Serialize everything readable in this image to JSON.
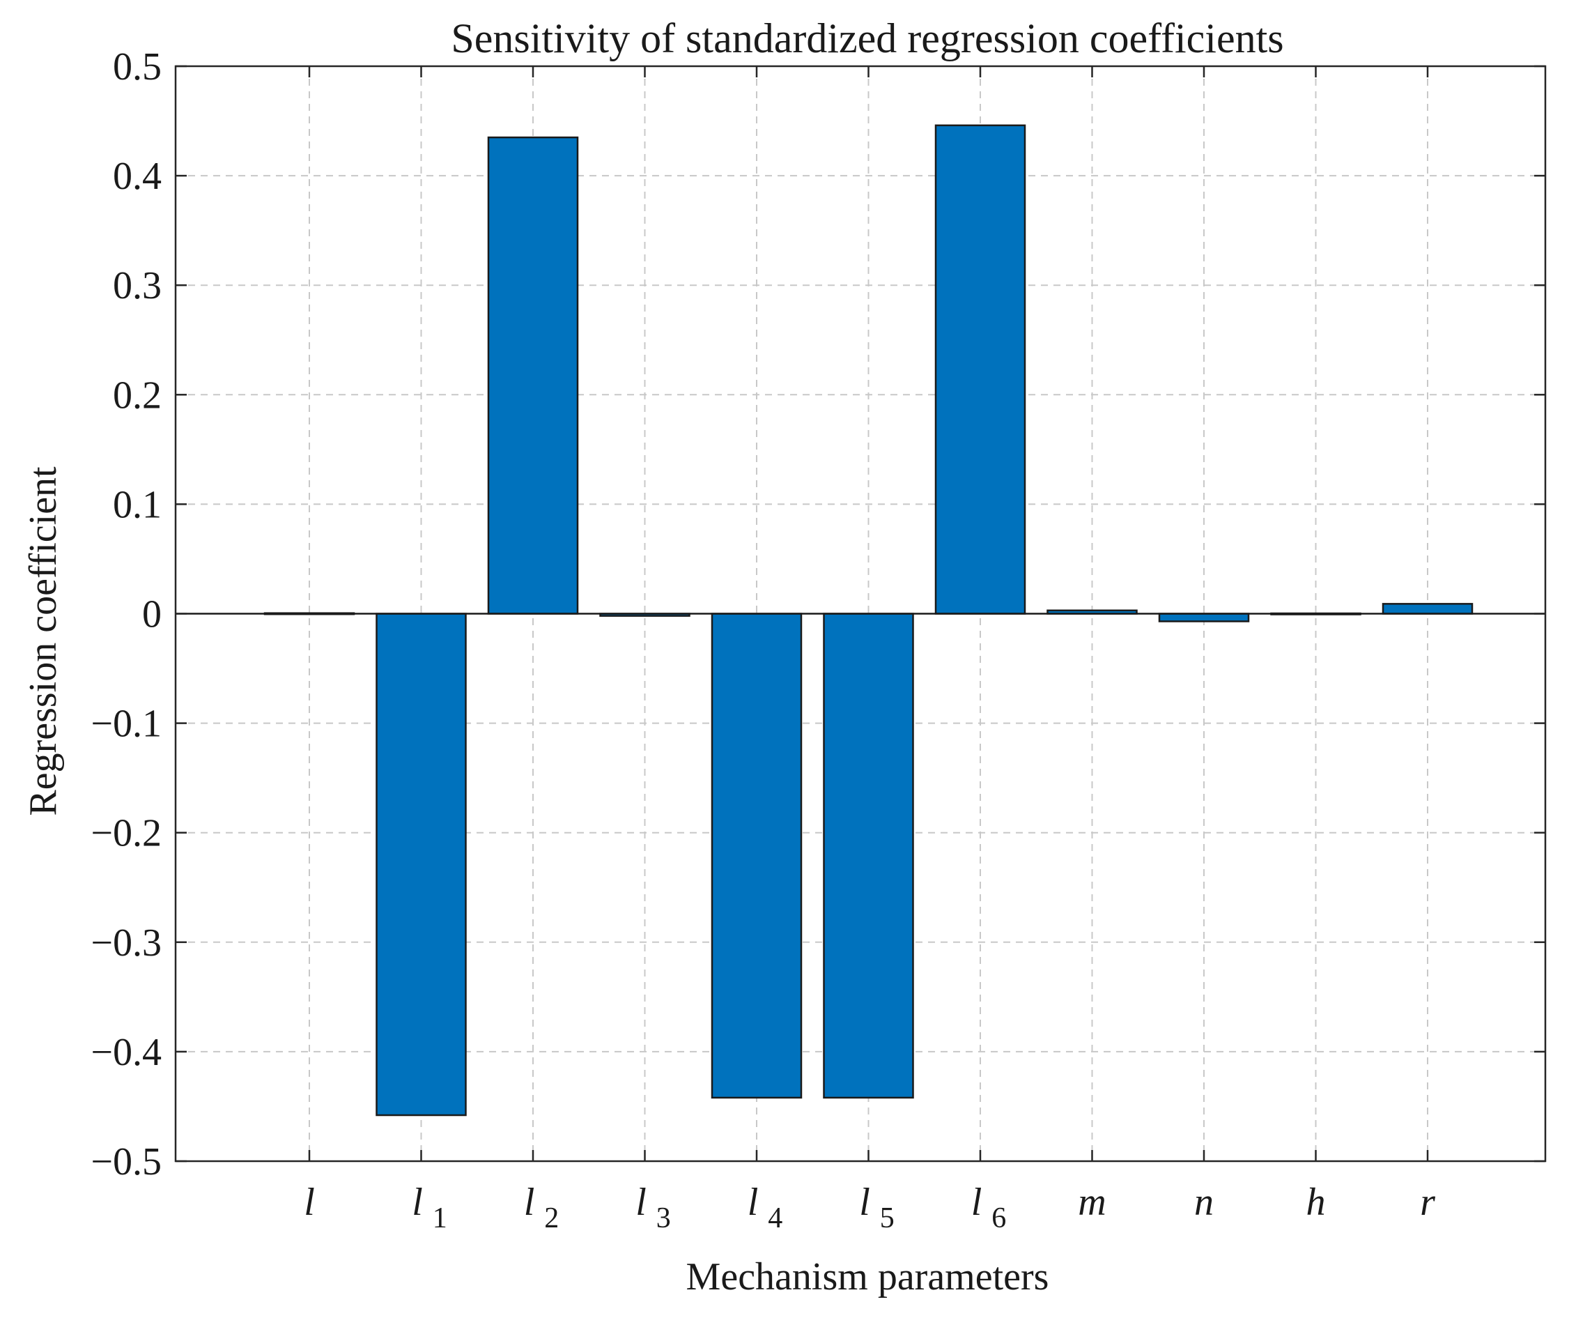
{
  "chart_data": {
    "type": "bar",
    "title": "Sensitivity of standardized regression coefficients",
    "xlabel": "Mechanism parameters",
    "ylabel": "Regression coefficient",
    "ylim": [
      -0.5,
      0.5
    ],
    "yticks": [
      0.5,
      0.4,
      0.3,
      0.2,
      0.1,
      0,
      -0.1,
      -0.2,
      -0.3,
      -0.4,
      -0.5
    ],
    "ytick_labels": [
      "0.5",
      "0.4",
      "0.3",
      "0.2",
      "0.1",
      "0",
      "−0.1",
      "−0.2",
      "−0.3",
      "−0.4",
      "−0.5"
    ],
    "grid": true,
    "bar_color": "#0072BD",
    "categories": [
      {
        "base": "l",
        "sub": ""
      },
      {
        "base": "l",
        "sub": "1"
      },
      {
        "base": "l",
        "sub": "2"
      },
      {
        "base": "l",
        "sub": "3"
      },
      {
        "base": "l",
        "sub": "4"
      },
      {
        "base": "l",
        "sub": "5"
      },
      {
        "base": "l",
        "sub": "6"
      },
      {
        "base": "m",
        "sub": ""
      },
      {
        "base": "n",
        "sub": ""
      },
      {
        "base": "h",
        "sub": ""
      },
      {
        "base": "r",
        "sub": ""
      }
    ],
    "values": [
      0.0005,
      -0.458,
      0.435,
      -0.002,
      -0.442,
      -0.442,
      0.446,
      0.003,
      -0.007,
      0.0003,
      0.009
    ]
  }
}
